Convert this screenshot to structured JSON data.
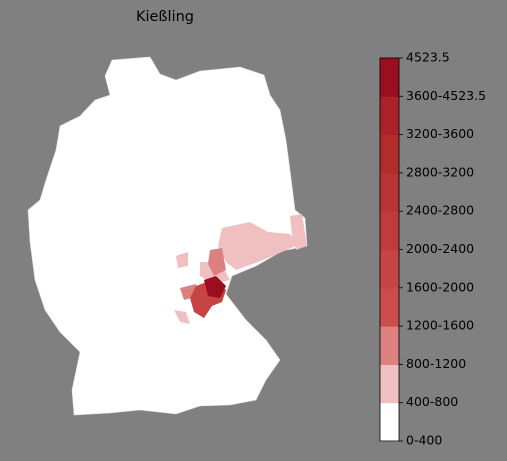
{
  "title": "Kießling",
  "legend": {
    "labels": [
      "0-400",
      "400-800",
      "800-1200",
      "1200-1600",
      "1600-2000",
      "2000-2400",
      "2400-2800",
      "2800-3200",
      "3200-3600",
      "3600-4523.5",
      "4523.5"
    ],
    "colors": [
      "#ffffff",
      "#f0c0c0",
      "#dd8080",
      "#cc4c4c",
      "#c64444",
      "#c03c3c",
      "#b93434",
      "#b22c2c",
      "#aa2228",
      "#9a0e20"
    ]
  }
}
